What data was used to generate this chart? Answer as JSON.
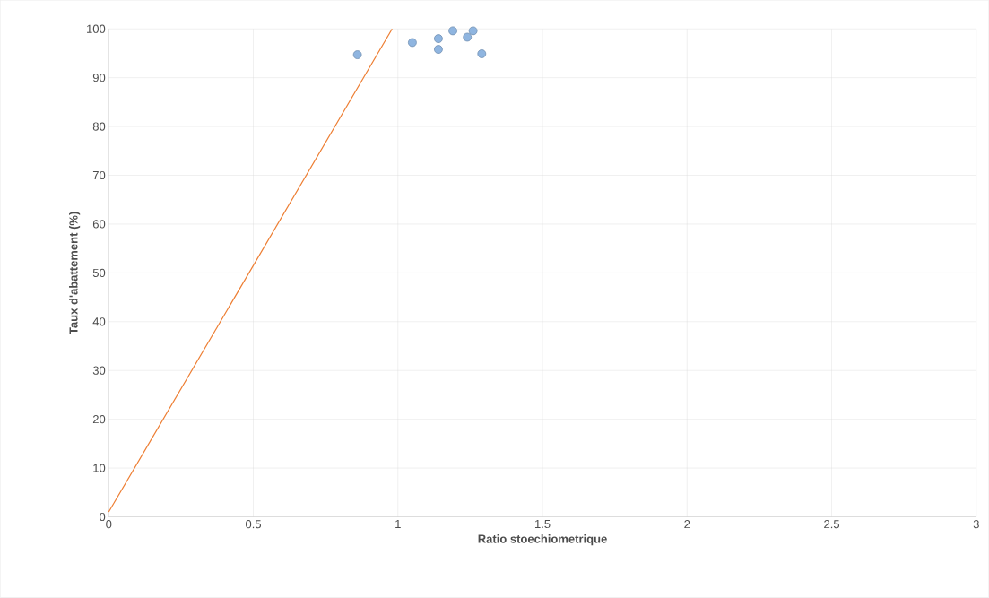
{
  "chart_data": {
    "type": "scatter",
    "xlabel": "Ratio stoechiometrique",
    "ylabel": "Taux d'abattement (%)",
    "xlim": [
      0,
      3
    ],
    "ylim": [
      0,
      100
    ],
    "xticks": [
      0,
      0.5,
      1,
      1.5,
      2,
      2.5,
      3
    ],
    "yticks": [
      0,
      10,
      20,
      30,
      40,
      50,
      60,
      70,
      80,
      90,
      100
    ],
    "grid": true,
    "series": [
      {
        "marker": "circle",
        "color": "#8fb5e0",
        "x": [
          0.86,
          1.05,
          1.14,
          1.14,
          1.19,
          1.24,
          1.26,
          1.29
        ],
        "values": [
          94.7,
          97.2,
          98.0,
          95.8,
          99.6,
          98.3,
          99.6,
          94.9
        ]
      },
      {
        "type": "line",
        "marker": "none",
        "color": "#ed7d31",
        "x": [
          0,
          0.98
        ],
        "values": [
          1,
          100
        ]
      }
    ]
  }
}
